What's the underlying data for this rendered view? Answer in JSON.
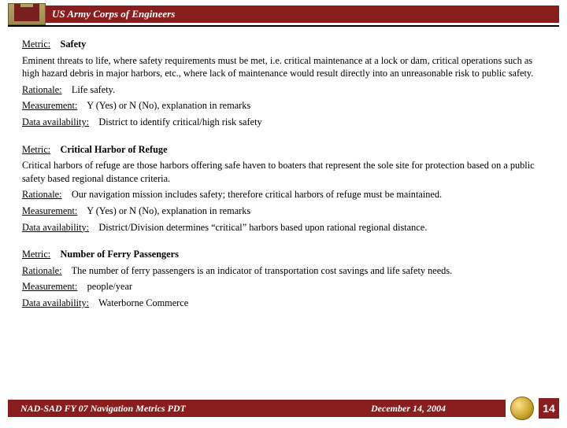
{
  "header": {
    "title": "US Army Corps of Engineers"
  },
  "sections": [
    {
      "metric_label": "Metric:",
      "metric_name": "Safety",
      "description": "Eminent threats to life, where safety requirements must be met, i.e. critical maintenance at a lock or dam, critical operations such as high hazard debris in major harbors, etc., where lack of maintenance would result directly into an unreasonable risk to public safety.",
      "rationale_label": "Rationale:",
      "rationale": "Life safety.",
      "measurement_label": "Measurement:",
      "measurement": "Y (Yes) or N (No), explanation in remarks",
      "availability_label": "Data availability:",
      "availability": "District to identify critical/high risk safety"
    },
    {
      "metric_label": "Metric:",
      "metric_name": "Critical Harbor of Refuge",
      "description": "Critical harbors of refuge are those harbors offering safe haven to boaters that represent the sole site for protection based on a public safety based regional distance criteria.",
      "rationale_label": "Rationale:",
      "rationale": "Our navigation mission includes safety; therefore critical harbors of refuge must be maintained.",
      "measurement_label": "Measurement:",
      "measurement": "Y (Yes) or N (No), explanation in remarks",
      "availability_label": "Data availability:",
      "availability": "District/Division determines “critical” harbors based upon rational regional distance."
    },
    {
      "metric_label": "Metric:",
      "metric_name": "Number of Ferry Passengers",
      "description": "",
      "rationale_label": "Rationale:",
      "rationale": "The number of ferry passengers is an indicator of transportation cost savings and life safety needs.",
      "measurement_label": "Measurement:",
      "measurement": "people/year",
      "availability_label": "Data availability:",
      "availability": "Waterborne Commerce"
    }
  ],
  "footer": {
    "left": "NAD-SAD FY 07 Navigation Metrics PDT",
    "date": "December 14, 2004",
    "page": "14"
  },
  "colors": {
    "brand_red": "#8a1e1e",
    "logo_gold": "#b5a26a",
    "text": "#000000",
    "background": "#ffffff"
  }
}
